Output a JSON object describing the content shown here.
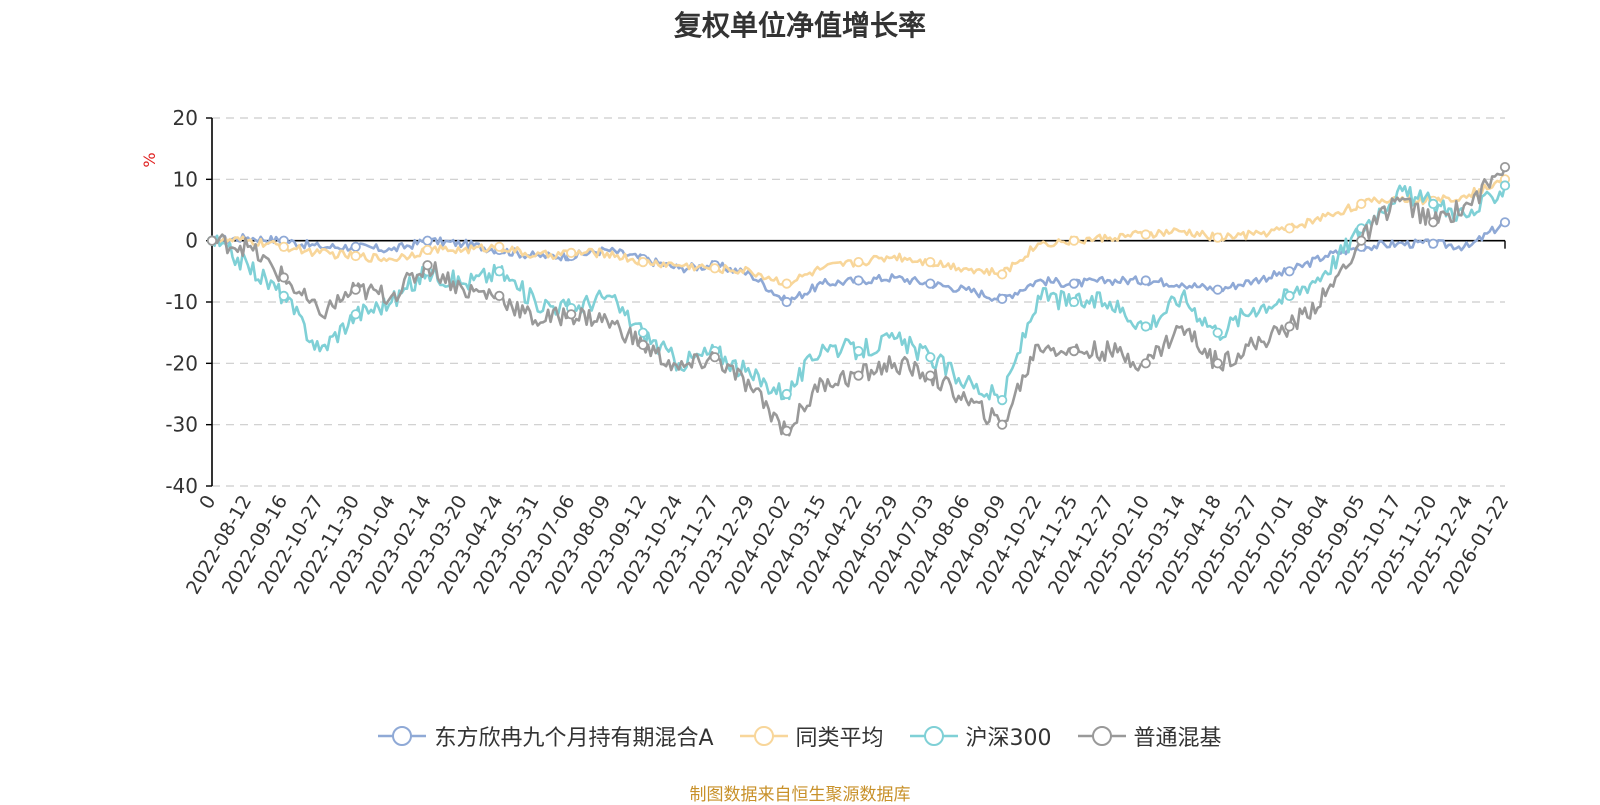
{
  "chart_data": {
    "type": "line",
    "title": "复权单位净值增长率",
    "ylabel": "%",
    "xlabel": "",
    "ylim": [
      -40,
      20
    ],
    "yticks": [
      20,
      10,
      0,
      -10,
      -20,
      -30,
      -40
    ],
    "grid": true,
    "legend_position": "bottom-center",
    "categories": [
      "0",
      "2022-08-12",
      "2022-09-16",
      "2022-10-27",
      "2022-11-30",
      "2023-01-04",
      "2023-02-14",
      "2023-03-20",
      "2023-04-24",
      "2023-05-31",
      "2023-07-06",
      "2023-08-09",
      "2023-09-12",
      "2023-10-24",
      "2023-11-27",
      "2023-12-29",
      "2024-02-02",
      "2024-03-15",
      "2024-04-22",
      "2024-05-29",
      "2024-07-03",
      "2024-08-06",
      "2024-09-09",
      "2024-10-22",
      "2024-11-25",
      "2024-12-27",
      "2025-02-10",
      "2025-03-14",
      "2025-04-18",
      "2025-05-27",
      "2025-07-01",
      "2025-08-04",
      "2025-09-05",
      "2025-10-17",
      "2025-11-20",
      "2025-12-24",
      "2026-01-22"
    ],
    "series": [
      {
        "name": "东方欣冉九个月持有期混合A",
        "color": "#8fa9d6",
        "values": [
          0,
          0.5,
          0,
          -1,
          -1,
          -1.5,
          0,
          -0.5,
          -1.5,
          -2.5,
          -2.5,
          -1.5,
          -3,
          -4.5,
          -4,
          -5.5,
          -10,
          -7,
          -6.5,
          -6,
          -7,
          -8,
          -9.5,
          -6.5,
          -7,
          -6.5,
          -6.5,
          -7,
          -8,
          -6.5,
          -5,
          -2.5,
          -1,
          -0.5,
          -0.5,
          -1,
          3
        ]
      },
      {
        "name": "同类平均",
        "color": "#f8d69a",
        "values": [
          0,
          0,
          -1,
          -2,
          -2.5,
          -3,
          -1.5,
          -1.5,
          -1,
          -2.5,
          -2,
          -2,
          -3.5,
          -4,
          -4.5,
          -5,
          -7,
          -4.5,
          -3.5,
          -2.5,
          -3.5,
          -4.5,
          -5.5,
          -0.5,
          0,
          0.5,
          1,
          1.5,
          0.5,
          1,
          2,
          4,
          6,
          7,
          6.5,
          7.5,
          10
        ]
      },
      {
        "name": "沪深300",
        "color": "#7fd0d6",
        "values": [
          0,
          -4,
          -9,
          -18,
          -12,
          -10,
          -5,
          -7,
          -5,
          -10,
          -11,
          -9,
          -15,
          -20,
          -18,
          -22,
          -25,
          -17,
          -18,
          -16,
          -19,
          -23,
          -26,
          -9,
          -10,
          -10,
          -14,
          -9,
          -15,
          -11,
          -9,
          -5,
          2,
          8,
          6,
          4,
          9
        ]
      },
      {
        "name": "普通混基",
        "color": "#999999",
        "values": [
          0,
          -1,
          -6,
          -12,
          -8,
          -9,
          -4,
          -8,
          -9,
          -13,
          -12,
          -13,
          -17,
          -21,
          -19,
          -24,
          -31,
          -23,
          -22,
          -20,
          -22,
          -26,
          -30,
          -17,
          -18,
          -18,
          -20,
          -14,
          -20,
          -17,
          -14,
          -9,
          0,
          7,
          3,
          6,
          12
        ]
      }
    ]
  },
  "source_text": "制图数据来自恒生聚源数据库"
}
